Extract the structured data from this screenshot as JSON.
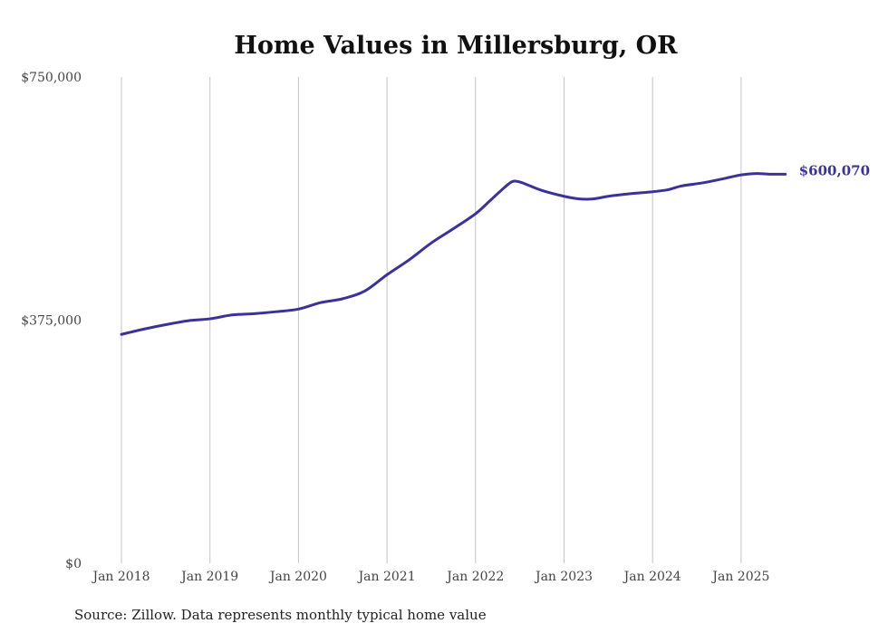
{
  "chart_data": {
    "type": "line",
    "title": "Home Values in Millersburg, OR",
    "xlabel": "",
    "ylabel": "",
    "ylim": [
      0,
      750000
    ],
    "y_ticks": [
      {
        "value": 0,
        "label": "$0"
      },
      {
        "value": 375000,
        "label": "$375,000"
      },
      {
        "value": 750000,
        "label": "$750,000"
      }
    ],
    "x_ticks": [
      {
        "value": 2018,
        "label": "Jan 2018"
      },
      {
        "value": 2019,
        "label": "Jan 2019"
      },
      {
        "value": 2020,
        "label": "Jan 2020"
      },
      {
        "value": 2021,
        "label": "Jan 2021"
      },
      {
        "value": 2022,
        "label": "Jan 2022"
      },
      {
        "value": 2023,
        "label": "Jan 2023"
      },
      {
        "value": 2024,
        "label": "Jan 2024"
      },
      {
        "value": 2025,
        "label": "Jan 2025"
      }
    ],
    "grid": "vertical",
    "series": [
      {
        "name": "Typical home value",
        "color": "#3b3299",
        "x": [
          2018.0,
          2018.25,
          2018.5,
          2018.75,
          2019.0,
          2019.25,
          2019.5,
          2019.75,
          2020.0,
          2020.25,
          2020.5,
          2020.75,
          2021.0,
          2021.25,
          2021.5,
          2021.75,
          2022.0,
          2022.17,
          2022.33,
          2022.42,
          2022.5,
          2022.58,
          2022.75,
          2023.0,
          2023.17,
          2023.33,
          2023.5,
          2023.75,
          2024.0,
          2024.17,
          2024.33,
          2024.58,
          2024.83,
          2025.0,
          2025.17,
          2025.33,
          2025.5
        ],
        "values": [
          353000,
          361000,
          368000,
          374000,
          377000,
          383000,
          385000,
          388000,
          392000,
          402000,
          408000,
          420000,
          445000,
          468000,
          494000,
          516000,
          539000,
          560000,
          580000,
          589000,
          588000,
          584000,
          575000,
          566000,
          562000,
          562000,
          566000,
          570000,
          573000,
          576000,
          582000,
          587000,
          594000,
          599000,
          601000,
          600000,
          600070
        ]
      }
    ],
    "end_label": "$600,070",
    "legend": "none"
  },
  "source": "Source: Zillow. Data represents monthly typical home value"
}
